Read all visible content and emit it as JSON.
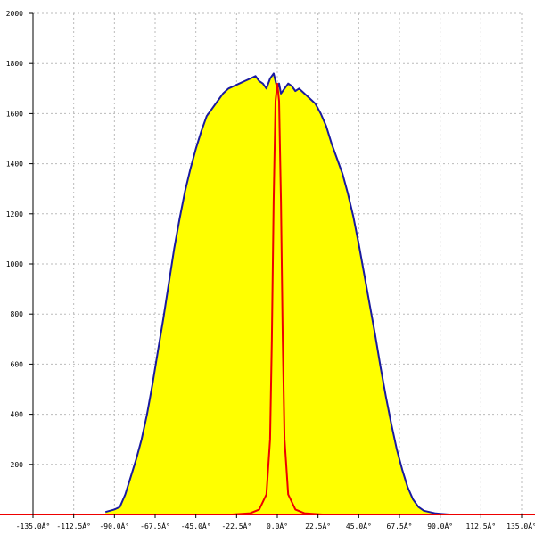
{
  "chart_data": {
    "type": "area",
    "title": "",
    "xlabel": "",
    "ylabel": "",
    "xlim": [
      -135,
      135
    ],
    "ylim": [
      0,
      2000
    ],
    "grid": true,
    "x_tick_labels": [
      "-135.0Â°",
      "-112.5Â°",
      "-90.0Â°",
      "-67.5Â°",
      "-45.0Â°",
      "-22.5Â°",
      "0.0Â°",
      "22.5Â°",
      "45.0Â°",
      "67.5Â°",
      "90.0Â°",
      "112.5Â°",
      "135.0Â°"
    ],
    "x_ticks": [
      -135,
      -112.5,
      -90,
      -67.5,
      -45,
      -22.5,
      0,
      22.5,
      45,
      67.5,
      90,
      112.5,
      135
    ],
    "y_ticks": [
      200,
      400,
      600,
      800,
      1000,
      1200,
      1400,
      1600,
      1800,
      2000
    ],
    "y_tick_labels": [
      "200",
      "400",
      "600",
      "800",
      "1000",
      "1200",
      "1400",
      "1600",
      "1800",
      "2000"
    ],
    "series": [
      {
        "color": "#1a1aa0",
        "fill": "#ffff00",
        "x": [
          -95,
          -90,
          -87,
          -84,
          -81,
          -78,
          -75,
          -72,
          -69,
          -66,
          -63,
          -60,
          -57,
          -54,
          -51,
          -48,
          -45,
          -42,
          -39,
          -36,
          -33,
          -30,
          -27,
          -24,
          -21,
          -18,
          -15,
          -12,
          -10,
          -8,
          -6,
          -4,
          -2,
          0,
          1,
          2,
          4,
          6,
          8,
          10,
          12,
          15,
          18,
          21,
          24,
          27,
          30,
          33,
          36,
          39,
          42,
          45,
          48,
          51,
          54,
          57,
          60,
          63,
          66,
          69,
          72,
          75,
          78,
          81,
          84,
          87,
          90,
          95
        ],
        "y": [
          10,
          20,
          30,
          80,
          150,
          220,
          300,
          400,
          520,
          650,
          780,
          920,
          1060,
          1180,
          1290,
          1380,
          1460,
          1530,
          1590,
          1620,
          1650,
          1680,
          1700,
          1710,
          1720,
          1730,
          1740,
          1750,
          1730,
          1720,
          1700,
          1740,
          1760,
          1700,
          1720,
          1680,
          1700,
          1720,
          1710,
          1690,
          1700,
          1680,
          1660,
          1640,
          1600,
          1550,
          1480,
          1420,
          1360,
          1280,
          1190,
          1080,
          960,
          840,
          720,
          590,
          470,
          360,
          260,
          180,
          110,
          60,
          30,
          15,
          10,
          5,
          3,
          0
        ]
      },
      {
        "color": "#ee0000",
        "x": [
          -135,
          -25,
          -15,
          -10,
          -6,
          -4,
          -3,
          -2,
          -1,
          0,
          1,
          2,
          3,
          4,
          6,
          10,
          15,
          25,
          135
        ],
        "y": [
          0,
          0,
          5,
          20,
          80,
          300,
          700,
          1250,
          1650,
          1720,
          1650,
          1250,
          700,
          300,
          80,
          20,
          5,
          0,
          0
        ]
      }
    ]
  }
}
